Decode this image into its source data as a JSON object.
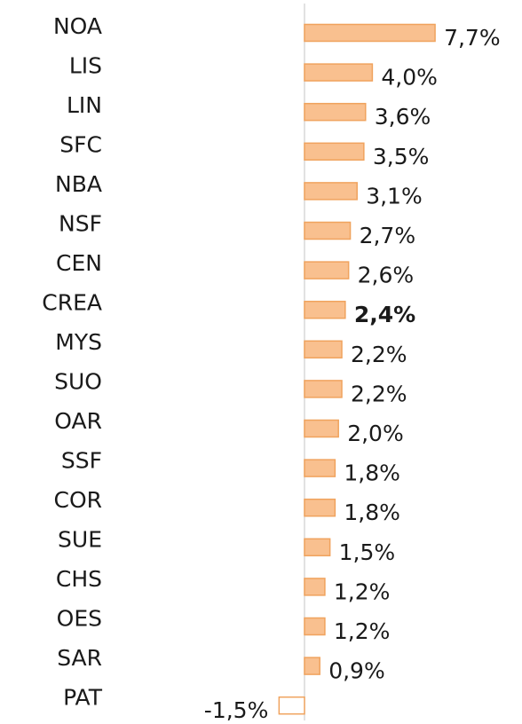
{
  "chart_data": {
    "type": "bar",
    "orientation": "horizontal",
    "categories": [
      "NOA",
      "LIS",
      "LIN",
      "SFC",
      "NBA",
      "NSF",
      "CEN",
      "CREA",
      "MYS",
      "SUO",
      "OAR",
      "SSF",
      "COR",
      "SUE",
      "CHS",
      "OES",
      "SAR",
      "PAT"
    ],
    "values": [
      7.7,
      4.0,
      3.6,
      3.5,
      3.1,
      2.7,
      2.6,
      2.4,
      2.2,
      2.2,
      2.0,
      1.8,
      1.8,
      1.5,
      1.2,
      1.2,
      0.9,
      -1.5
    ],
    "value_labels": [
      "7,7%",
      "4,0%",
      "3,6%",
      "3,5%",
      "3,1%",
      "2,7%",
      "2,6%",
      "2,4%",
      "2,2%",
      "2,2%",
      "2,0%",
      "1,8%",
      "1,8%",
      "1,5%",
      "1,2%",
      "1,2%",
      "0,9%",
      "-1,5%"
    ],
    "color": "#f9c08f",
    "edge_color": "#f0a35e",
    "negative_color": "#ffffff",
    "highlight": "CREA"
  }
}
